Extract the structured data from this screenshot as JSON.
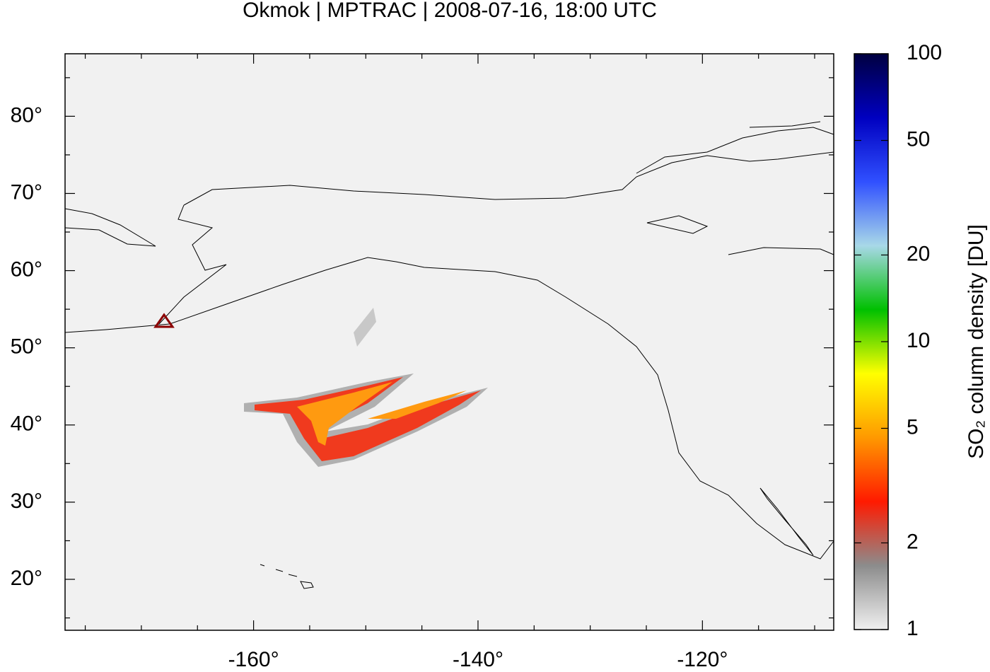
{
  "chart_data": {
    "type": "map",
    "title": "Okmok | MPTRAC | 2008-07-16, 18:00 UTC",
    "xlim": [
      -176.8,
      -108.3
    ],
    "ylim": [
      13.4,
      88.1
    ],
    "xticks": [
      {
        "value": -160,
        "label": "-160°"
      },
      {
        "value": -140,
        "label": "-140°"
      },
      {
        "value": -120,
        "label": "-120°"
      }
    ],
    "yticks": [
      {
        "value": 20,
        "label": "20°"
      },
      {
        "value": 30,
        "label": "30°"
      },
      {
        "value": 40,
        "label": "40°"
      },
      {
        "value": 50,
        "label": "50°"
      },
      {
        "value": 60,
        "label": "60°"
      },
      {
        "value": 70,
        "label": "70°"
      },
      {
        "value": 80,
        "label": "80°"
      }
    ],
    "xminorticks": [
      -175,
      -170,
      -165,
      -155,
      -150,
      -145,
      -135,
      -130,
      -125,
      -115,
      -110
    ],
    "yminorticks": [
      15,
      25,
      35,
      45,
      55,
      65,
      75,
      85
    ],
    "colorbar": {
      "label": "SO₂ column density [DU]",
      "log": true,
      "lim": [
        1,
        100
      ],
      "ticks": [
        1,
        2,
        5,
        10,
        20,
        50,
        100
      ],
      "colormap": [
        "#f0f0f0",
        "#8c8c8c",
        "#ff1a00",
        "#ff9900",
        "#ffff00",
        "#00c000",
        "#a8d8e8",
        "#3050ff",
        "#0000c0",
        "#000040"
      ]
    }
  }
}
